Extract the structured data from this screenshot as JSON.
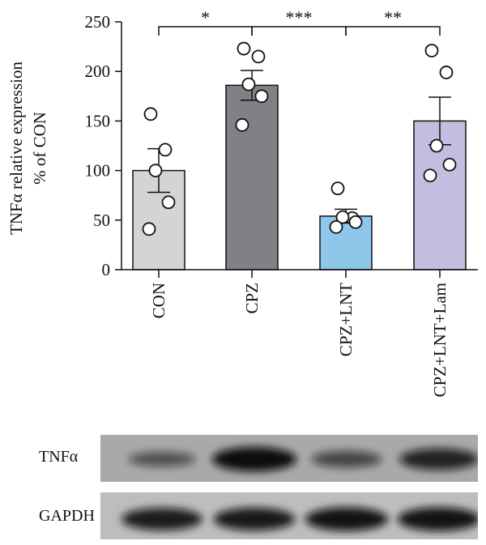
{
  "chart_data": {
    "type": "bar",
    "ylabel_line1": "TNFα relative expression",
    "ylabel_line2": "% of CON",
    "ylim": [
      0,
      250
    ],
    "yticks": [
      0,
      50,
      100,
      150,
      200,
      250
    ],
    "categories": [
      "CON",
      "CPZ",
      "CPZ+LNT",
      "CPZ+LNT+Lam"
    ],
    "values": [
      100,
      186,
      54,
      150
    ],
    "errors": [
      22,
      15,
      7,
      24
    ],
    "bar_colors": [
      "#d3d4d6",
      "#808086",
      "#8ec7ea",
      "#c3bddf"
    ],
    "points": [
      [
        157,
        121,
        100,
        68,
        41
      ],
      [
        223,
        215,
        187,
        175,
        146
      ],
      [
        82,
        52,
        53,
        48,
        43
      ],
      [
        221,
        199,
        125,
        106,
        95
      ]
    ],
    "significance": [
      {
        "from": 0,
        "to": 1,
        "label": "*"
      },
      {
        "from": 1,
        "to": 2,
        "label": "***"
      },
      {
        "from": 2,
        "to": 3,
        "label": "**"
      }
    ]
  },
  "blot": {
    "rows": [
      {
        "label": "TNFα",
        "band_intensity": [
          0.42,
          1.0,
          0.52,
          0.82
        ]
      },
      {
        "label": "GAPDH",
        "band_intensity": [
          0.88,
          0.9,
          0.95,
          0.95
        ]
      }
    ]
  }
}
